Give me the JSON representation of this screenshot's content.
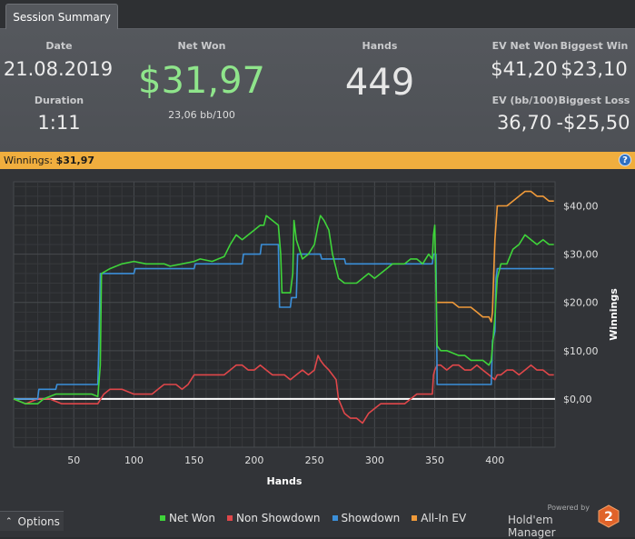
{
  "tab": {
    "label": "Session Summary"
  },
  "summary": {
    "date_label": "Date",
    "date_value": "21.08.2019",
    "duration_label": "Duration",
    "duration_value": "1:11",
    "net_won_label": "Net Won",
    "net_won_value": "$31,97",
    "net_won_bb": "23,06 bb/100",
    "hands_label": "Hands",
    "hands_value": "449",
    "ev_net_won_label": "EV Net Won",
    "ev_net_won_value": "$41,20",
    "ev_bb_label": "EV (bb/100)",
    "ev_bb_value": "36,70",
    "biggest_win_label": "Biggest Win",
    "biggest_win_value": "$23,10",
    "biggest_loss_label": "Biggest Loss",
    "biggest_loss_value": "-$25,50"
  },
  "banner": {
    "label": "Winnings:",
    "value": "$31,97",
    "help": "?"
  },
  "colors": {
    "net_won": "#3fd43a",
    "non_showdown": "#e0474a",
    "showdown": "#3b8fd9",
    "all_in_ev": "#f09a3a",
    "accent": "#f0ae3e",
    "net_won_text": "#8fe58b"
  },
  "chart_data": {
    "type": "line",
    "xlabel": "Hands",
    "ylabel": "Winnings",
    "xlim": [
      0,
      450
    ],
    "ylim": [
      -10,
      45
    ],
    "x_ticks": [
      "50",
      "100",
      "150",
      "200",
      "250",
      "300",
      "350",
      "400"
    ],
    "y_ticks": [
      "$40,00",
      "$30,00",
      "$20,00",
      "$10,00",
      "$0,00"
    ],
    "grid": true,
    "legend_position": "bottom",
    "series": [
      {
        "name": "Net Won",
        "color": "#3fd43a",
        "points": [
          [
            0,
            0
          ],
          [
            10,
            -1
          ],
          [
            20,
            -1
          ],
          [
            25,
            0
          ],
          [
            35,
            1
          ],
          [
            45,
            1
          ],
          [
            55,
            1
          ],
          [
            65,
            1
          ],
          [
            70,
            0.5
          ],
          [
            72,
            7
          ],
          [
            73,
            26
          ],
          [
            80,
            27
          ],
          [
            90,
            28
          ],
          [
            100,
            28.5
          ],
          [
            110,
            28
          ],
          [
            120,
            28
          ],
          [
            125,
            28
          ],
          [
            130,
            27.5
          ],
          [
            140,
            28
          ],
          [
            150,
            28.5
          ],
          [
            155,
            29
          ],
          [
            165,
            28.5
          ],
          [
            170,
            29
          ],
          [
            175,
            29.5
          ],
          [
            180,
            32
          ],
          [
            185,
            34
          ],
          [
            190,
            33
          ],
          [
            195,
            34
          ],
          [
            200,
            35
          ],
          [
            205,
            36
          ],
          [
            208,
            36
          ],
          [
            210,
            38
          ],
          [
            215,
            37
          ],
          [
            220,
            36
          ],
          [
            222,
            30
          ],
          [
            223,
            22
          ],
          [
            225,
            22
          ],
          [
            230,
            22
          ],
          [
            232,
            26
          ],
          [
            233,
            37
          ],
          [
            235,
            33
          ],
          [
            240,
            29
          ],
          [
            245,
            30
          ],
          [
            250,
            32
          ],
          [
            253,
            36
          ],
          [
            255,
            38
          ],
          [
            258,
            37
          ],
          [
            262,
            35
          ],
          [
            265,
            30
          ],
          [
            268,
            27
          ],
          [
            270,
            25
          ],
          [
            275,
            24
          ],
          [
            280,
            24
          ],
          [
            285,
            24
          ],
          [
            290,
            25
          ],
          [
            295,
            26
          ],
          [
            300,
            25
          ],
          [
            305,
            26
          ],
          [
            310,
            27
          ],
          [
            315,
            28
          ],
          [
            320,
            28
          ],
          [
            325,
            28
          ],
          [
            330,
            29
          ],
          [
            335,
            29
          ],
          [
            340,
            28
          ],
          [
            345,
            30
          ],
          [
            348,
            29
          ],
          [
            349,
            34
          ],
          [
            350,
            36
          ],
          [
            352,
            11
          ],
          [
            355,
            10
          ],
          [
            360,
            10
          ],
          [
            370,
            9
          ],
          [
            375,
            9
          ],
          [
            380,
            8
          ],
          [
            385,
            8
          ],
          [
            390,
            8
          ],
          [
            395,
            7
          ],
          [
            397,
            8
          ],
          [
            400,
            17
          ],
          [
            402,
            25
          ],
          [
            405,
            28
          ],
          [
            410,
            28
          ],
          [
            415,
            31
          ],
          [
            420,
            32
          ],
          [
            425,
            34
          ],
          [
            430,
            33
          ],
          [
            435,
            32
          ],
          [
            440,
            33
          ],
          [
            445,
            32
          ],
          [
            449,
            32
          ]
        ]
      },
      {
        "name": "Non Showdown",
        "color": "#e0474a",
        "points": [
          [
            0,
            0
          ],
          [
            10,
            -1
          ],
          [
            20,
            0
          ],
          [
            30,
            0
          ],
          [
            40,
            -1
          ],
          [
            50,
            -1
          ],
          [
            60,
            -1
          ],
          [
            70,
            -1
          ],
          [
            75,
            1
          ],
          [
            80,
            2
          ],
          [
            90,
            2
          ],
          [
            100,
            1
          ],
          [
            110,
            1
          ],
          [
            115,
            1
          ],
          [
            120,
            2
          ],
          [
            125,
            3
          ],
          [
            130,
            3
          ],
          [
            135,
            3
          ],
          [
            140,
            2
          ],
          [
            145,
            3
          ],
          [
            150,
            5
          ],
          [
            155,
            5
          ],
          [
            160,
            5
          ],
          [
            165,
            5
          ],
          [
            170,
            5
          ],
          [
            175,
            5
          ],
          [
            180,
            6
          ],
          [
            185,
            7
          ],
          [
            190,
            7
          ],
          [
            195,
            6
          ],
          [
            200,
            6
          ],
          [
            205,
            7
          ],
          [
            210,
            6
          ],
          [
            215,
            5
          ],
          [
            220,
            5
          ],
          [
            225,
            5
          ],
          [
            230,
            4
          ],
          [
            235,
            5
          ],
          [
            240,
            6
          ],
          [
            245,
            5
          ],
          [
            250,
            6
          ],
          [
            253,
            9
          ],
          [
            255,
            8
          ],
          [
            258,
            7
          ],
          [
            262,
            6
          ],
          [
            265,
            5
          ],
          [
            268,
            4
          ],
          [
            270,
            0
          ],
          [
            275,
            -3
          ],
          [
            280,
            -4
          ],
          [
            285,
            -4
          ],
          [
            290,
            -5
          ],
          [
            295,
            -3
          ],
          [
            300,
            -2
          ],
          [
            305,
            -1
          ],
          [
            310,
            -1
          ],
          [
            315,
            -1
          ],
          [
            320,
            -1
          ],
          [
            325,
            -1
          ],
          [
            330,
            0
          ],
          [
            335,
            1
          ],
          [
            340,
            1
          ],
          [
            345,
            1
          ],
          [
            348,
            1
          ],
          [
            349,
            5
          ],
          [
            350,
            6
          ],
          [
            352,
            7
          ],
          [
            355,
            7
          ],
          [
            360,
            6
          ],
          [
            365,
            7
          ],
          [
            370,
            7
          ],
          [
            375,
            6
          ],
          [
            380,
            6
          ],
          [
            385,
            7
          ],
          [
            390,
            6
          ],
          [
            395,
            5
          ],
          [
            400,
            4
          ],
          [
            402,
            5
          ],
          [
            405,
            5
          ],
          [
            410,
            6
          ],
          [
            415,
            6
          ],
          [
            420,
            5
          ],
          [
            425,
            6
          ],
          [
            430,
            7
          ],
          [
            435,
            6
          ],
          [
            440,
            6
          ],
          [
            445,
            5
          ],
          [
            449,
            5
          ]
        ]
      },
      {
        "name": "Showdown",
        "color": "#3b8fd9",
        "points": [
          [
            0,
            0
          ],
          [
            20,
            0
          ],
          [
            21,
            2
          ],
          [
            35,
            2
          ],
          [
            36,
            3
          ],
          [
            70,
            3
          ],
          [
            71,
            12
          ],
          [
            72,
            26
          ],
          [
            100,
            26
          ],
          [
            101,
            27
          ],
          [
            150,
            27
          ],
          [
            151,
            28
          ],
          [
            190,
            28
          ],
          [
            191,
            30
          ],
          [
            205,
            30
          ],
          [
            206,
            32
          ],
          [
            220,
            32
          ],
          [
            221,
            19
          ],
          [
            230,
            19
          ],
          [
            231,
            21
          ],
          [
            235,
            21
          ],
          [
            236,
            30
          ],
          [
            255,
            30
          ],
          [
            256,
            29
          ],
          [
            275,
            29
          ],
          [
            276,
            28
          ],
          [
            348,
            28
          ],
          [
            349,
            30
          ],
          [
            351,
            30
          ],
          [
            352,
            3
          ],
          [
            397,
            3
          ],
          [
            398,
            12
          ],
          [
            400,
            14
          ],
          [
            401,
            25
          ],
          [
            402,
            27
          ],
          [
            449,
            27
          ]
        ]
      },
      {
        "name": "All-In EV",
        "color": "#f09a3a",
        "points": [
          [
            352,
            20
          ],
          [
            365,
            20
          ],
          [
            370,
            19
          ],
          [
            380,
            19
          ],
          [
            385,
            18
          ],
          [
            390,
            17
          ],
          [
            395,
            17
          ],
          [
            397,
            16
          ],
          [
            398,
            18
          ],
          [
            399,
            26
          ],
          [
            400,
            33
          ],
          [
            402,
            40
          ],
          [
            410,
            40
          ],
          [
            415,
            41
          ],
          [
            420,
            42
          ],
          [
            425,
            43
          ],
          [
            430,
            43
          ],
          [
            435,
            42
          ],
          [
            440,
            42
          ],
          [
            445,
            41
          ],
          [
            449,
            41
          ]
        ]
      }
    ]
  },
  "footer": {
    "options_label": "Options",
    "legend": [
      {
        "label": "Net Won",
        "color": "#3fd43a"
      },
      {
        "label": "Non Showdown",
        "color": "#e0474a"
      },
      {
        "label": "Showdown",
        "color": "#3b8fd9"
      },
      {
        "label": "All-In EV",
        "color": "#f09a3a"
      }
    ],
    "powered_by": "Powered by",
    "brand_name": "Hold'em Manager",
    "brand_logo_text": "2"
  }
}
